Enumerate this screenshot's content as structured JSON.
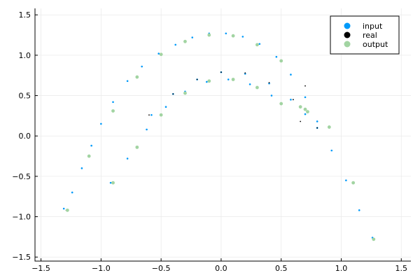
{
  "chart_data": {
    "type": "scatter",
    "title": "",
    "xlabel": "",
    "ylabel": "",
    "xlim": [
      -1.55,
      1.58
    ],
    "ylim": [
      -1.55,
      1.58
    ],
    "x_ticks": [
      -1.5,
      -1.0,
      -0.5,
      0.0,
      0.5,
      1.0,
      1.5
    ],
    "x_tick_labels": [
      "−1.5",
      "−1.0",
      "−0.5",
      "0.0",
      "0.5",
      "1.0",
      "1.5"
    ],
    "y_ticks": [
      -1.5,
      -1.0,
      -0.5,
      0.0,
      0.5,
      1.0,
      1.5
    ],
    "y_tick_labels": [
      "−1.5",
      "−1.0",
      "−0.5",
      "0.0",
      "0.5",
      "1.0",
      "1.5"
    ],
    "grid": true,
    "legend_position": "top-right",
    "series": [
      {
        "name": "input",
        "color": "#009AFA",
        "values": [
          {
            "x": -1.31,
            "y": -0.9
          },
          {
            "x": -1.24,
            "y": -0.7
          },
          {
            "x": -1.16,
            "y": -0.4
          },
          {
            "x": -1.08,
            "y": -0.12
          },
          {
            "x": -1.0,
            "y": 0.15
          },
          {
            "x": -0.9,
            "y": 0.42
          },
          {
            "x": -0.78,
            "y": 0.68
          },
          {
            "x": -0.66,
            "y": 0.86
          },
          {
            "x": -0.52,
            "y": 1.02
          },
          {
            "x": -0.38,
            "y": 1.13
          },
          {
            "x": -0.24,
            "y": 1.22
          },
          {
            "x": -0.1,
            "y": 1.27
          },
          {
            "x": 0.04,
            "y": 1.27
          },
          {
            "x": 0.18,
            "y": 1.23
          },
          {
            "x": 0.32,
            "y": 1.14
          },
          {
            "x": 0.46,
            "y": 0.98
          },
          {
            "x": 0.58,
            "y": 0.76
          },
          {
            "x": 0.7,
            "y": 0.48
          },
          {
            "x": 0.8,
            "y": 0.18
          },
          {
            "x": 0.92,
            "y": -0.18
          },
          {
            "x": 1.04,
            "y": -0.55
          },
          {
            "x": 1.15,
            "y": -0.92
          },
          {
            "x": 1.26,
            "y": -1.26
          },
          {
            "x": -0.92,
            "y": -0.58
          },
          {
            "x": -0.78,
            "y": -0.28
          },
          {
            "x": -0.62,
            "y": 0.08
          },
          {
            "x": -0.46,
            "y": 0.36
          },
          {
            "x": -0.3,
            "y": 0.55
          },
          {
            "x": -0.12,
            "y": 0.67
          },
          {
            "x": 0.06,
            "y": 0.7
          },
          {
            "x": 0.24,
            "y": 0.64
          },
          {
            "x": 0.42,
            "y": 0.5
          },
          {
            "x": -0.58,
            "y": 0.26
          },
          {
            "x": -0.4,
            "y": 0.52
          },
          {
            "x": -0.2,
            "y": 0.7
          },
          {
            "x": 0.0,
            "y": 0.79
          },
          {
            "x": 0.2,
            "y": 0.77
          },
          {
            "x": 0.4,
            "y": 0.65
          },
          {
            "x": 0.58,
            "y": 0.45
          },
          {
            "x": 0.7,
            "y": 0.27
          },
          {
            "x": 0.8,
            "y": 0.1
          }
        ]
      },
      {
        "name": "real",
        "color": "#000000",
        "values": [
          {
            "x": -1.29,
            "y": -0.92
          },
          {
            "x": -1.1,
            "y": -0.25
          },
          {
            "x": -0.9,
            "y": 0.3
          },
          {
            "x": -0.7,
            "y": 0.72
          },
          {
            "x": -0.5,
            "y": 1.0
          },
          {
            "x": -0.3,
            "y": 1.17
          },
          {
            "x": -0.1,
            "y": 1.25
          },
          {
            "x": 0.1,
            "y": 1.24
          },
          {
            "x": 0.3,
            "y": 1.14
          },
          {
            "x": 0.5,
            "y": 0.94
          },
          {
            "x": 0.7,
            "y": 0.62
          },
          {
            "x": 0.9,
            "y": 0.12
          },
          {
            "x": 1.1,
            "y": -0.58
          },
          {
            "x": 1.27,
            "y": -1.27
          },
          {
            "x": -0.9,
            "y": -0.58
          },
          {
            "x": -0.7,
            "y": -0.15
          },
          {
            "x": -0.5,
            "y": 0.25
          },
          {
            "x": -0.3,
            "y": 0.52
          },
          {
            "x": -0.1,
            "y": 0.67
          },
          {
            "x": 0.1,
            "y": 0.69
          },
          {
            "x": 0.3,
            "y": 0.59
          },
          {
            "x": 0.5,
            "y": 0.39
          },
          {
            "x": 0.66,
            "y": 0.18
          },
          {
            "x": -0.6,
            "y": 0.26
          },
          {
            "x": -0.4,
            "y": 0.52
          },
          {
            "x": -0.2,
            "y": 0.7
          },
          {
            "x": 0.0,
            "y": 0.79
          },
          {
            "x": 0.2,
            "y": 0.78
          },
          {
            "x": 0.4,
            "y": 0.66
          },
          {
            "x": 0.6,
            "y": 0.45
          },
          {
            "x": 0.8,
            "y": 0.1
          }
        ]
      },
      {
        "name": "output",
        "color": "#A2D4A2",
        "values": [
          {
            "x": -1.28,
            "y": -0.92
          },
          {
            "x": -1.1,
            "y": -0.25
          },
          {
            "x": -0.9,
            "y": 0.31
          },
          {
            "x": -0.7,
            "y": 0.73
          },
          {
            "x": -0.5,
            "y": 1.01
          },
          {
            "x": -0.3,
            "y": 1.17
          },
          {
            "x": -0.1,
            "y": 1.25
          },
          {
            "x": 0.1,
            "y": 1.24
          },
          {
            "x": 0.3,
            "y": 1.13
          },
          {
            "x": 0.5,
            "y": 0.93
          },
          {
            "x": 0.66,
            "y": 0.36
          },
          {
            "x": 0.9,
            "y": 0.11
          },
          {
            "x": 1.1,
            "y": -0.58
          },
          {
            "x": 1.27,
            "y": -1.28
          },
          {
            "x": -0.9,
            "y": -0.58
          },
          {
            "x": -0.7,
            "y": -0.14
          },
          {
            "x": -0.5,
            "y": 0.26
          },
          {
            "x": -0.3,
            "y": 0.53
          },
          {
            "x": -0.1,
            "y": 0.68
          },
          {
            "x": 0.1,
            "y": 0.7
          },
          {
            "x": 0.3,
            "y": 0.6
          },
          {
            "x": 0.5,
            "y": 0.4
          },
          {
            "x": 0.7,
            "y": 0.33
          },
          {
            "x": 0.72,
            "y": 0.3
          }
        ]
      }
    ]
  }
}
